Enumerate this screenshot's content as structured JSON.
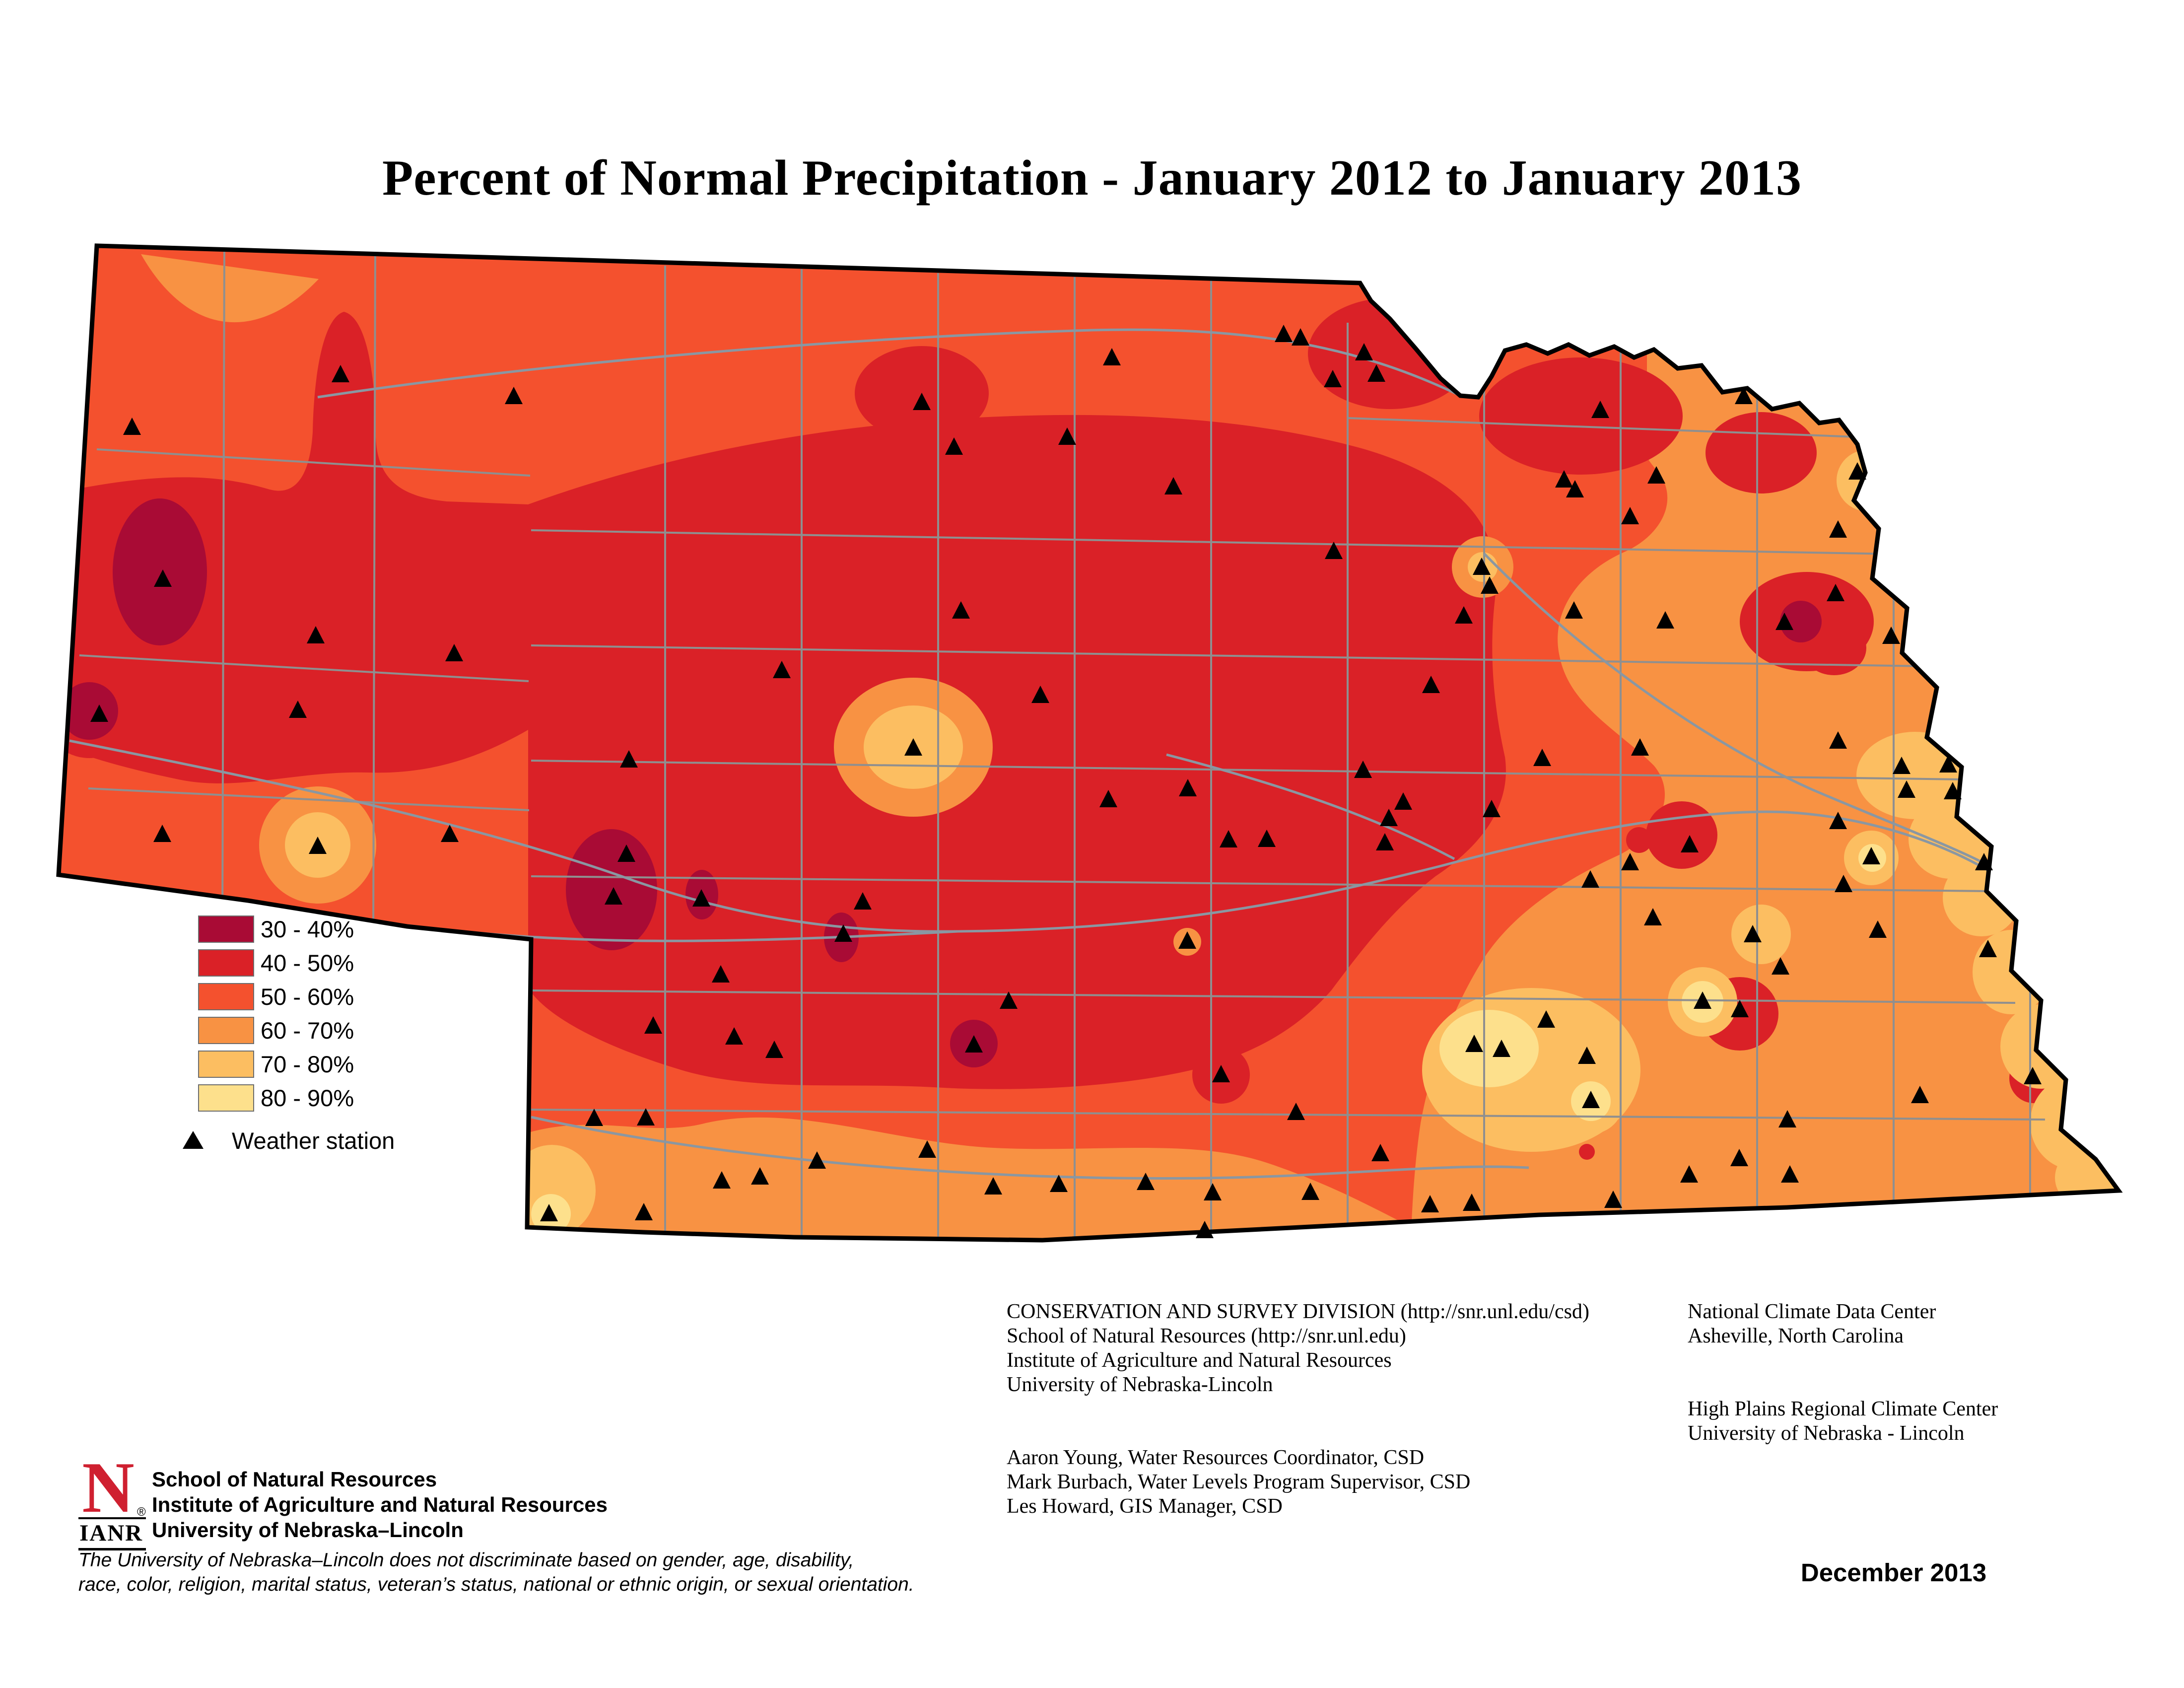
{
  "title": "Percent of Normal Precipitation - January 2012 to January 2013",
  "legend": {
    "classes": [
      {
        "label": "30 - 40%",
        "color": "#A90B35"
      },
      {
        "label": "40 - 50%",
        "color": "#DA2127"
      },
      {
        "label": "50 - 60%",
        "color": "#F4512E"
      },
      {
        "label": "60 - 70%",
        "color": "#F89243"
      },
      {
        "label": "70 - 80%",
        "color": "#FCBE61"
      },
      {
        "label": "80 - 90%",
        "color": "#FDE08C"
      }
    ],
    "station_label": "Weather station"
  },
  "credits": {
    "left": [
      "CONSERVATION AND SURVEY DIVISION (http://snr.unl.edu/csd)",
      "School of Natural Resources (http://snr.unl.edu)",
      "Institute of Agriculture and Natural Resources",
      "University of Nebraska-Lincoln",
      "Aaron Young, Water Resources Coordinator, CSD",
      "Mark Burbach, Water Levels Program Supervisor, CSD",
      "Les Howard, GIS Manager, CSD"
    ],
    "right": [
      "National Climate Data Center",
      "Asheville, North Carolina",
      "High Plains Regional Climate Center",
      "University of Nebraska - Lincoln"
    ]
  },
  "footer": {
    "logo_letter": "N",
    "logo_reg": "®",
    "logo_ianr": "IANR",
    "org_lines": [
      "School of Natural Resources",
      "Institute of Agriculture and Natural Resources",
      "University of Nebraska–Lincoln"
    ],
    "disclaimer": [
      "The University of Nebraska–Lincoln does not discriminate based on gender, age, disability,",
      "race, color, religion, marital status, veteran’s status, national or ethnic origin, or sexual orientation."
    ],
    "date": "December 2013"
  },
  "map": {
    "state": "Nebraska",
    "border_color": "#000000",
    "county_line_color": "#8f8f8f",
    "river_color": "#8a97a2",
    "station_color": "#000000",
    "stations": [
      [
        266,
        862
      ],
      [
        686,
        756
      ],
      [
        1035,
        800
      ],
      [
        328,
        1168
      ],
      [
        636,
        1282
      ],
      [
        915,
        1318
      ],
      [
        600,
        1432
      ],
      [
        327,
        1682
      ],
      [
        640,
        1706
      ],
      [
        906,
        1682
      ],
      [
        200,
        1440
      ],
      [
        1575,
        1352
      ],
      [
        1267,
        1532
      ],
      [
        1922,
        902
      ],
      [
        1840,
        1508
      ],
      [
        2150,
        882
      ],
      [
        1936,
        1232
      ],
      [
        2096,
        1402
      ],
      [
        1857,
        812
      ],
      [
        2620,
        682
      ],
      [
        2748,
        712
      ],
      [
        2364,
        982
      ],
      [
        2240,
        722
      ],
      [
        2687,
        1112
      ],
      [
        2883,
        1382
      ],
      [
        2949,
        1242
      ],
      [
        2586,
        675
      ],
      [
        2685,
        766
      ],
      [
        2773,
        755
      ],
      [
        3224,
        828
      ],
      [
        3151,
        968
      ],
      [
        3337,
        960
      ],
      [
        3513,
        800
      ],
      [
        3742,
        952
      ],
      [
        3595,
        1255
      ],
      [
        3698,
        1197
      ],
      [
        3703,
        1069
      ],
      [
        3810,
        1283
      ],
      [
        3703,
        1494
      ],
      [
        3703,
        1656
      ],
      [
        3831,
        1545
      ],
      [
        3925,
        1542
      ],
      [
        3770,
        1727
      ],
      [
        3997,
        1739
      ],
      [
        3171,
        1232
      ],
      [
        3355,
        1252
      ],
      [
        3001,
        1182
      ],
      [
        3284,
        1042
      ],
      [
        3173,
        988
      ],
      [
        1262,
        1722
      ],
      [
        1236,
        1808
      ],
      [
        1413,
        1812
      ],
      [
        1699,
        1883
      ],
      [
        1738,
        1818
      ],
      [
        1962,
        2106
      ],
      [
        1452,
        1965
      ],
      [
        1560,
        2117
      ],
      [
        2032,
        2018
      ],
      [
        2460,
        2166
      ],
      [
        2392,
        1897
      ],
      [
        2233,
        1612
      ],
      [
        2393,
        1590
      ],
      [
        2475,
        1693
      ],
      [
        2552,
        1692
      ],
      [
        2790,
        1699
      ],
      [
        2798,
        1650
      ],
      [
        2746,
        1553
      ],
      [
        2827,
        1617
      ],
      [
        1106,
        2446
      ],
      [
        1297,
        2444
      ],
      [
        1316,
        2068
      ],
      [
        1479,
        2090
      ],
      [
        1646,
        2340
      ],
      [
        1531,
        2372
      ],
      [
        1454,
        2380
      ],
      [
        1868,
        2318
      ],
      [
        2001,
        2392
      ],
      [
        2133,
        2387
      ],
      [
        2308,
        2383
      ],
      [
        2443,
        2404
      ],
      [
        2640,
        2403
      ],
      [
        2427,
        2480
      ],
      [
        2611,
        2242
      ],
      [
        2781,
        2325
      ],
      [
        2881,
        2428
      ],
      [
        2965,
        2425
      ],
      [
        1197,
        2254
      ],
      [
        1301,
        2253
      ],
      [
        3005,
        1632
      ],
      [
        3107,
        1529
      ],
      [
        3304,
        1508
      ],
      [
        3404,
        1703
      ],
      [
        3284,
        1739
      ],
      [
        3204,
        1774
      ],
      [
        3330,
        1850
      ],
      [
        3115,
        2056
      ],
      [
        3587,
        1949
      ],
      [
        3714,
        1783
      ],
      [
        3841,
        1593
      ],
      [
        3934,
        1596
      ],
      [
        3783,
        1875
      ],
      [
        4005,
        1914
      ],
      [
        3868,
        2208
      ],
      [
        4095,
        2170
      ],
      [
        3601,
        2257
      ],
      [
        3504,
        2335
      ],
      [
        3403,
        2368
      ],
      [
        3606,
        2368
      ],
      [
        2970,
        2105
      ],
      [
        3025,
        2115
      ],
      [
        3197,
        2129
      ],
      [
        3205,
        2218
      ],
      [
        3430,
        2018
      ],
      [
        3505,
        2035
      ],
      [
        3531,
        1884
      ],
      [
        3250,
        2419
      ],
      [
        2985,
        1144
      ]
    ]
  }
}
